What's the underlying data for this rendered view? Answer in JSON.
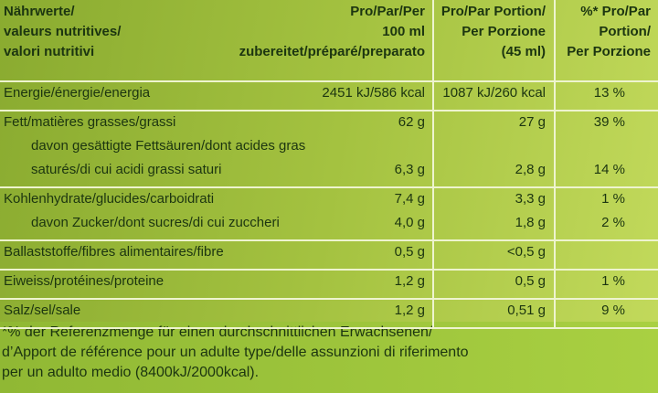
{
  "header": [
    "Nährwerte/\nvaleurs nutritives/\nvalori nutritivi",
    "Pro/Par/Per\n100 ml\nzubereitet/préparé/preparato",
    "Pro/Par Portion/\nPer Porzione\n(45 ml)",
    "%* Pro/Par\nPortion/\nPer Porzione"
  ],
  "rows": [
    {
      "lines": [
        {
          "label": "Energie/énergie/energia",
          "values": [
            "2451 kJ/586 kcal",
            "1087 kJ/260 kcal",
            "13 %"
          ]
        }
      ]
    },
    {
      "lines": [
        {
          "label": "Fett/matières grasses/grassi",
          "values": [
            "62 g",
            "27 g",
            "39 %"
          ]
        },
        {
          "label": "davon gesättigte Fettsäuren/dont acides gras"
        },
        {
          "label": "saturés/di cui acidi grassi saturi",
          "values": [
            "6,3 g",
            "2,8 g",
            "14 %"
          ]
        }
      ]
    },
    {
      "lines": [
        {
          "label": "Kohlenhydrate/glucides/carboidrati",
          "values": [
            "7,4 g",
            "3,3 g",
            "1 %"
          ]
        },
        {
          "label": "davon Zucker/dont sucres/di cui zuccheri",
          "values": [
            "4,0 g",
            "1,8 g",
            "2 %"
          ]
        }
      ]
    },
    {
      "lines": [
        {
          "label": "Ballaststoffe/fibres alimentaires/fibre",
          "values": [
            "0,5 g",
            "<0,5 g",
            ""
          ]
        }
      ]
    },
    {
      "lines": [
        {
          "label": "Eiweiss/protéines/proteine",
          "values": [
            "1,2 g",
            "0,5 g",
            "1 %"
          ]
        }
      ]
    },
    {
      "lines": [
        {
          "label": "Salz/sel/sale",
          "values": [
            "1,2 g",
            "0,51 g",
            "9 %"
          ]
        }
      ]
    }
  ],
  "footnote": "*% der Referenzmenge für einen durchschnittlichen Erwachsenen/\nd’Apport de référence pour un adulte type/delle assunzioni di riferimento\nper un adulto medio (8400kJ/2000kcal)."
}
